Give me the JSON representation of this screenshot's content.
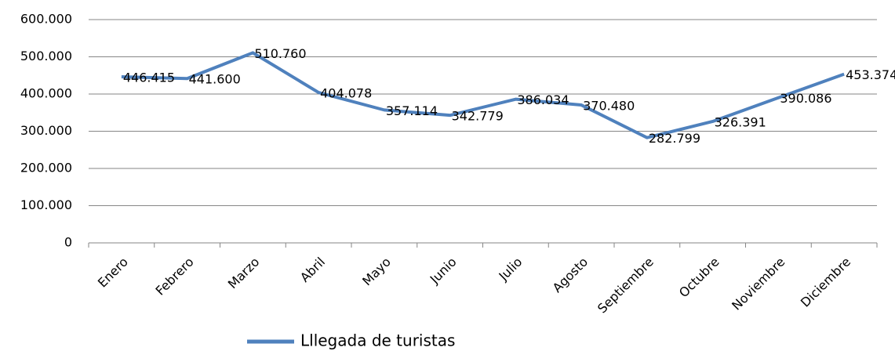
{
  "chart_data": {
    "type": "line",
    "categories": [
      "Enero",
      "Febrero",
      "Marzo",
      "Abril",
      "Mayo",
      "Junio",
      "Julio",
      "Agosto",
      "Septiembre",
      "Octubre",
      "Noviembre",
      "Diciembre"
    ],
    "series": [
      {
        "name": "Lllegada de turistas",
        "color": "#4f81bd",
        "values": [
          446415,
          441600,
          510760,
          404078,
          357114,
          342779,
          386034,
          370480,
          282799,
          326391,
          390086,
          453374
        ],
        "value_labels": [
          "446.415",
          "441.600",
          "510.760",
          "404.078",
          "357.114",
          "342.779",
          "386.034",
          "370.480",
          "282.799",
          "326.391",
          "390.086",
          "453.374"
        ]
      }
    ],
    "ylim": [
      0,
      600000
    ],
    "yticks": [
      0,
      {
        "value": 100000,
        "label": "100.000"
      },
      {
        "value": 200000,
        "label": "200.000"
      },
      {
        "value": 300000,
        "label": "300.000"
      },
      {
        "value": 400000,
        "label": "400.000"
      },
      {
        "value": 500000,
        "label": "500.000"
      },
      {
        "value": 600000,
        "label": "600.000"
      }
    ],
    "grid": true,
    "legend": "bottom"
  }
}
